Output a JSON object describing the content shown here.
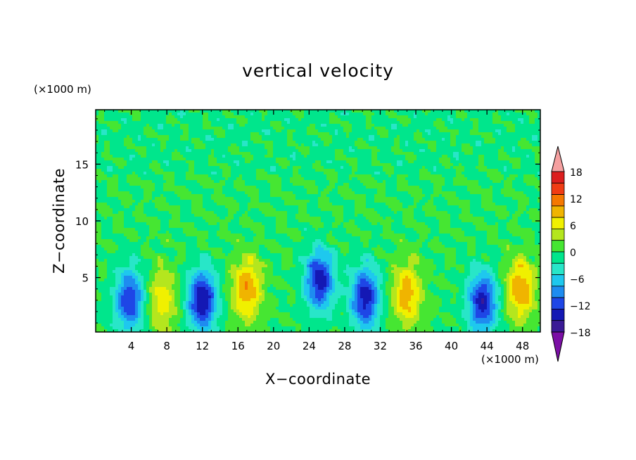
{
  "chart_data": {
    "type": "heatmap",
    "title": "vertical velocity",
    "xlabel": "X−coordinate",
    "ylabel": "Z−coordinate",
    "x_unit": "(×1000 m)",
    "y_unit": "(×1000 m)",
    "xlim": [
      0,
      50
    ],
    "ylim": [
      0.2,
      19.8
    ],
    "x_ticks": [
      4,
      8,
      12,
      16,
      20,
      24,
      28,
      32,
      36,
      40,
      44,
      48
    ],
    "y_ticks": [
      5,
      10,
      15
    ],
    "colorbar": {
      "levels": [
        -21,
        -18,
        -15,
        -12,
        -9,
        -6,
        -3,
        0,
        3,
        6,
        9,
        12,
        15,
        18,
        21
      ],
      "tick_labels": [
        "18",
        "12",
        "6",
        "0",
        "−6",
        "−12",
        "−18"
      ],
      "tick_values": [
        18,
        12,
        6,
        0,
        -6,
        -12,
        -18
      ],
      "colors": [
        "#7b0fa5",
        "#3a1a96",
        "#1418b4",
        "#1e46e6",
        "#1e8cf0",
        "#1ec8ee",
        "#28e6c8",
        "#00e68c",
        "#46e632",
        "#b4e61e",
        "#f0f000",
        "#f0b400",
        "#f57800",
        "#f03c14",
        "#dc1e1e",
        "#f5a0a0"
      ],
      "extend": "both"
    },
    "structures": [
      {
        "x": 3.8,
        "z": 3.0,
        "w_max": -15
      },
      {
        "x": 7.5,
        "z": 3.0,
        "w_max": 8
      },
      {
        "x": 12.0,
        "z": 3.0,
        "w_max": -18
      },
      {
        "x": 17.0,
        "z": 4.0,
        "w_max": 12
      },
      {
        "x": 25.2,
        "z": 4.8,
        "w_max": -17
      },
      {
        "x": 30.3,
        "z": 3.2,
        "w_max": -17
      },
      {
        "x": 35.0,
        "z": 3.5,
        "w_max": 11
      },
      {
        "x": 43.5,
        "z": 2.8,
        "w_max": -17
      },
      {
        "x": 47.8,
        "z": 4.0,
        "w_max": 12
      }
    ]
  }
}
